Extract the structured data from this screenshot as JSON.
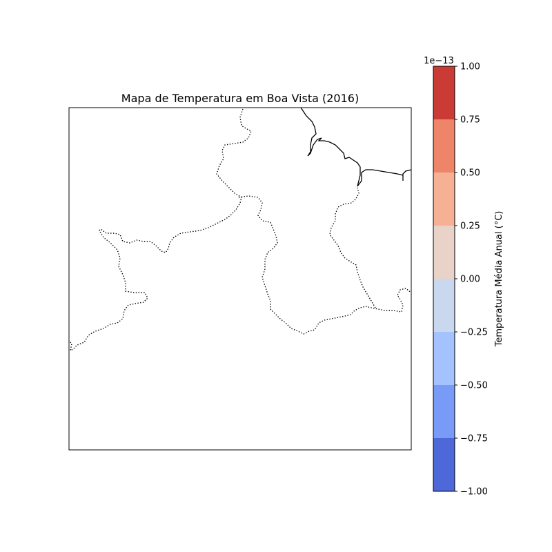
{
  "map": {
    "title": "Mapa de Temperatura em Boa Vista (2016)"
  },
  "colorbar": {
    "label": "Temperatura Média Anual (°C)",
    "offset_text": "1e−13",
    "ticks": [
      "1.00",
      "0.75",
      "0.50",
      "0.25",
      "0.00",
      "−0.25",
      "−0.50",
      "−0.75",
      "−1.00"
    ],
    "colors": [
      "#cb3b36",
      "#ee8468",
      "#f6b093",
      "#e9d3c9",
      "#cad8ef",
      "#a4c2fe",
      "#779bf7",
      "#4e68da"
    ]
  },
  "chart_data": {
    "type": "heatmap",
    "title": "Mapa de Temperatura em Boa Vista (2016)",
    "colorbar_label": "Temperatura Média Anual (°C)",
    "colorbar_scale": "1e−13",
    "colorbar_range": [
      -1.0,
      1.0
    ],
    "colorbar_levels": [
      -1.0,
      -0.75,
      -0.5,
      -0.25,
      0.0,
      0.25,
      0.5,
      0.75,
      1.0
    ]
  }
}
